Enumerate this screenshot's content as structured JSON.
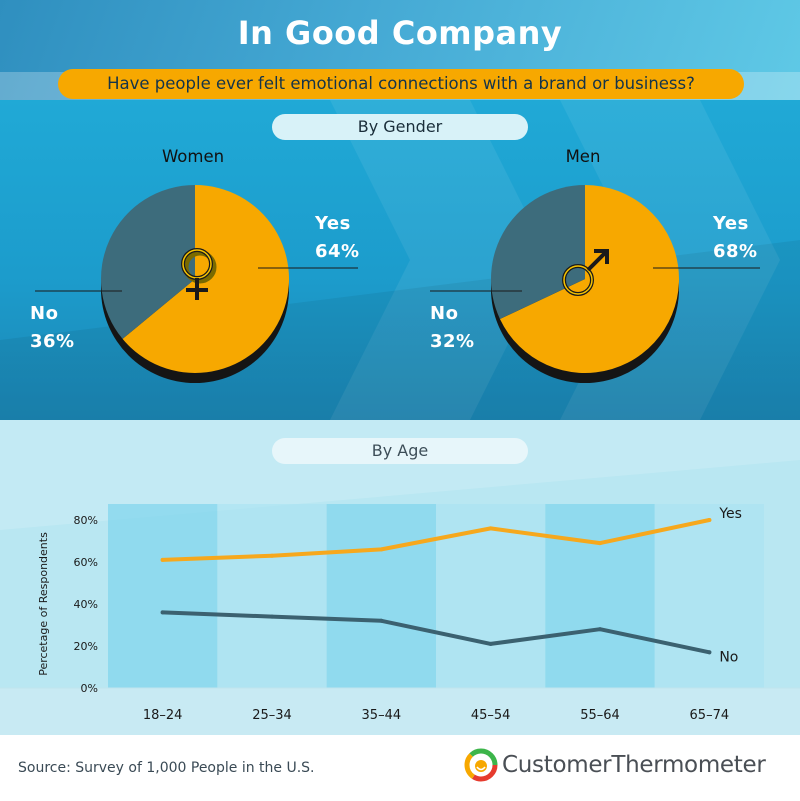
{
  "title": "In Good Company",
  "question": "Have people ever felt emotional connections with a brand or business?",
  "section_gender": "By Gender",
  "section_age": "By Age",
  "source": "Source: Survey of 1,000 People in the U.S.",
  "brand": {
    "name": "CustomerThermometer",
    "icon": "thermometer-smile-logo"
  },
  "colors": {
    "yes": "#f7a800",
    "no": "#3d6c7c",
    "yes_line": "#f6a81d",
    "no_line": "#3b6170"
  },
  "chart_data": [
    {
      "type": "pie",
      "title": "Women",
      "icon": "female-symbol-icon",
      "labels": [
        "Yes",
        "No"
      ],
      "values": [
        64,
        36
      ],
      "value_labels": [
        "64%",
        "36%"
      ]
    },
    {
      "type": "pie",
      "title": "Men",
      "icon": "male-symbol-icon",
      "labels": [
        "Yes",
        "No"
      ],
      "values": [
        68,
        32
      ],
      "value_labels": [
        "68%",
        "32%"
      ]
    },
    {
      "type": "line",
      "categories": [
        "18–24",
        "25–34",
        "35–44",
        "45–54",
        "55–64",
        "65–74"
      ],
      "series": [
        {
          "name": "Yes",
          "values": [
            61,
            63,
            66,
            76,
            69,
            80
          ]
        },
        {
          "name": "No",
          "values": [
            36,
            34,
            32,
            21,
            28,
            17
          ]
        }
      ],
      "ylabel": "Percetage of Respondents",
      "ylim": [
        0,
        80
      ],
      "yticks": [
        "0%",
        "20%",
        "40%",
        "60%",
        "80%"
      ],
      "grid": false
    }
  ]
}
